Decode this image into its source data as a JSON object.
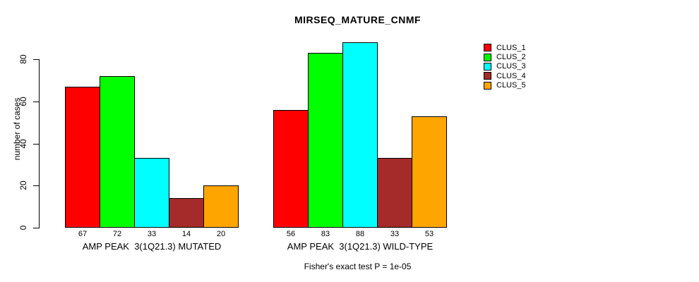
{
  "chart_data": {
    "type": "bar",
    "title": "MIRSEQ_MATURE_CNMF",
    "ylabel": "number of cases",
    "ylim": [
      0,
      88
    ],
    "yticks": [
      0,
      20,
      40,
      60,
      80
    ],
    "grid": false,
    "legend_position": "right",
    "categories": [
      "AMP PEAK  3(1Q21.3) MUTATED",
      "AMP PEAK  3(1Q21.3) WILD-TYPE"
    ],
    "series": [
      {
        "name": "CLUS_1",
        "color": "#FF0000",
        "values": [
          67,
          56
        ]
      },
      {
        "name": "CLUS_2",
        "color": "#00FF00",
        "values": [
          72,
          83
        ]
      },
      {
        "name": "CLUS_3",
        "color": "#00FFFF",
        "values": [
          33,
          88
        ]
      },
      {
        "name": "CLUS_4",
        "color": "#A52A2A",
        "values": [
          14,
          33
        ]
      },
      {
        "name": "CLUS_5",
        "color": "#FFA500",
        "values": [
          20,
          53
        ]
      }
    ],
    "bar_value_labels": {
      "AMP PEAK  3(1Q21.3) MUTATED": [
        67,
        72,
        33,
        14,
        20
      ],
      "AMP PEAK  3(1Q21.3) WILD-TYPE": [
        56,
        83,
        88,
        33,
        53
      ]
    },
    "annotation": "Fisher's exact test P = 1e-05"
  }
}
